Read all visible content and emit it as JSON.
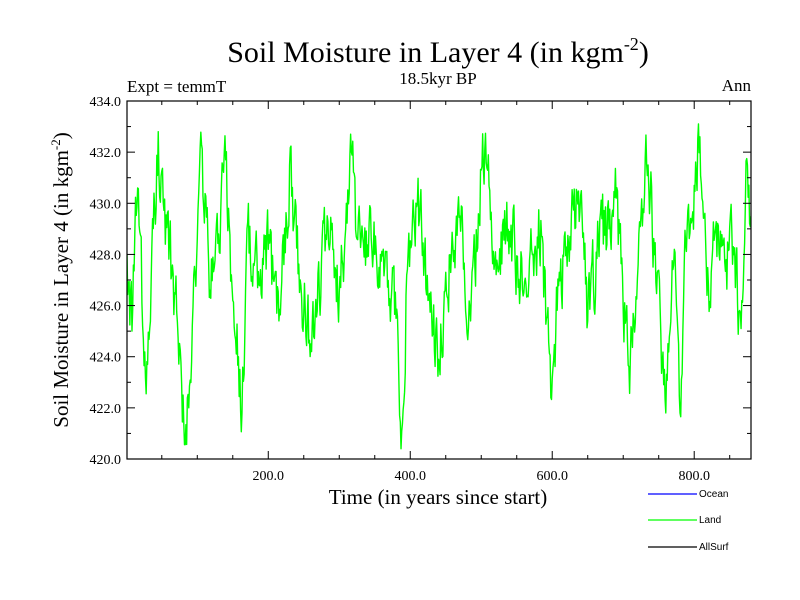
{
  "chart_data": {
    "type": "line",
    "title_main": "Soil Moisture in Layer 4 (in kgm",
    "title_sup": "-2",
    "title_close": ")",
    "subtitle_left": "Expt = temmT",
    "subtitle_center": "18.5kyr BP",
    "subtitle_right": "Ann",
    "ylabel_main": "Soil Moisture in Layer 4 (in kgm",
    "ylabel_sup": "-2",
    "ylabel_close": ")",
    "xlabel": "Time (in years since start)",
    "xlim": [
      1,
      880
    ],
    "ylim": [
      420,
      434
    ],
    "yticks": [
      420,
      422,
      424,
      426,
      428,
      430,
      432,
      434
    ],
    "ytick_labels": [
      "420.0",
      "422.0",
      "424.0",
      "426.0",
      "428.0",
      "430.0",
      "432.0",
      "434.0"
    ],
    "xticks": [
      200,
      400,
      600,
      800
    ],
    "xtick_labels": [
      "200.0",
      "400.0",
      "600.0",
      "800.0"
    ],
    "series": [
      {
        "name": "Land",
        "color": "#00ff00",
        "n_points": 880,
        "mean": 427.8,
        "anchors": [
          [
            1,
            428.0
          ],
          [
            8,
            425.0
          ],
          [
            16,
            430.6
          ],
          [
            22,
            426.1
          ],
          [
            30,
            423.7
          ],
          [
            40,
            429.8
          ],
          [
            45,
            432.8
          ],
          [
            55,
            428.4
          ],
          [
            68,
            426.5
          ],
          [
            80,
            422.5
          ],
          [
            88,
            422.0
          ],
          [
            100,
            428.6
          ],
          [
            106,
            432.3
          ],
          [
            118,
            426.6
          ],
          [
            130,
            428.8
          ],
          [
            140,
            431.7
          ],
          [
            150,
            426.2
          ],
          [
            158,
            424.0
          ],
          [
            163,
            421.8
          ],
          [
            170,
            429.0
          ],
          [
            185,
            426.7
          ],
          [
            200,
            428.2
          ],
          [
            215,
            425.4
          ],
          [
            230,
            431.5
          ],
          [
            245,
            427.0
          ],
          [
            260,
            424.5
          ],
          [
            275,
            427.8
          ],
          [
            292,
            428.2
          ],
          [
            300,
            426.5
          ],
          [
            310,
            430.0
          ],
          [
            316,
            432.7
          ],
          [
            325,
            428.6
          ],
          [
            335,
            427.9
          ],
          [
            350,
            428.0
          ],
          [
            358,
            428.0
          ],
          [
            370,
            426.0
          ],
          [
            380,
            425.5
          ],
          [
            388,
            421.1
          ],
          [
            395,
            427.2
          ],
          [
            410,
            430.0
          ],
          [
            425,
            426.2
          ],
          [
            440,
            423.9
          ],
          [
            450,
            427.3
          ],
          [
            470,
            429.5
          ],
          [
            485,
            425.4
          ],
          [
            500,
            431.3
          ],
          [
            505,
            432.1
          ],
          [
            520,
            428.1
          ],
          [
            540,
            428.9
          ],
          [
            555,
            426.7
          ],
          [
            570,
            429.0
          ],
          [
            585,
            428.7
          ],
          [
            598,
            422.4
          ],
          [
            610,
            427.3
          ],
          [
            625,
            428.7
          ],
          [
            640,
            430.3
          ],
          [
            650,
            425.4
          ],
          [
            665,
            428.5
          ],
          [
            680,
            429.0
          ],
          [
            690,
            430.2
          ],
          [
            700,
            425.8
          ],
          [
            710,
            423.9
          ],
          [
            722,
            428.8
          ],
          [
            735,
            431.5
          ],
          [
            748,
            427.3
          ],
          [
            760,
            421.8
          ],
          [
            772,
            428.2
          ],
          [
            780,
            421.8
          ],
          [
            790,
            429.0
          ],
          [
            800,
            430.7
          ],
          [
            808,
            432.6
          ],
          [
            818,
            426.4
          ],
          [
            830,
            429.0
          ],
          [
            845,
            427.8
          ],
          [
            855,
            428.3
          ],
          [
            866,
            425.1
          ],
          [
            875,
            431.5
          ],
          [
            880,
            429.5
          ]
        ]
      }
    ],
    "legend": {
      "placement": "bottom-right",
      "entries": [
        {
          "label": "Ocean",
          "color": "#0000ff"
        },
        {
          "label": "Land",
          "color": "#00ff00"
        },
        {
          "label": "AllSurf",
          "color": "#000000"
        }
      ]
    }
  }
}
